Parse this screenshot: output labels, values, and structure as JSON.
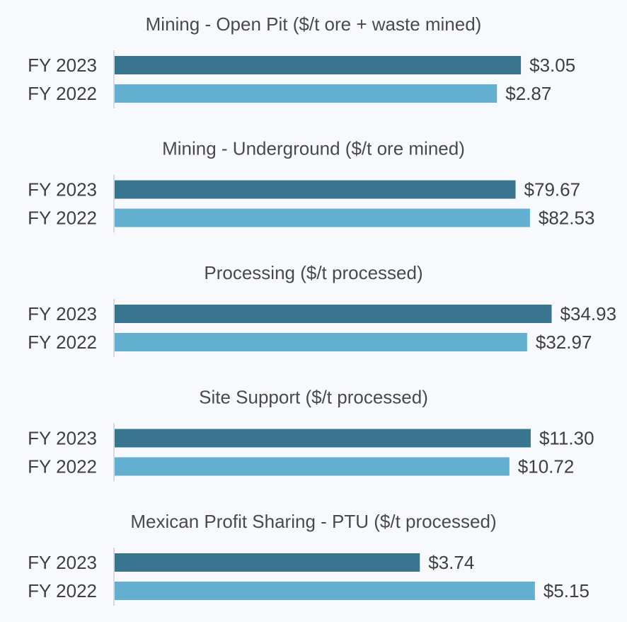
{
  "chart_data": [
    {
      "type": "bar",
      "orientation": "horizontal",
      "title": "Mining - Open Pit ($/t ore + waste mined)",
      "categories": [
        "FY 2023",
        "FY 2022"
      ],
      "values": [
        3.05,
        2.87
      ],
      "value_labels": [
        "$3.05",
        "$2.87"
      ],
      "colors": [
        "#3a758f",
        "#63afd0"
      ],
      "xlim": [
        0,
        3.4
      ]
    },
    {
      "type": "bar",
      "orientation": "horizontal",
      "title": "Mining - Underground ($/t ore mined)",
      "categories": [
        "FY 2023",
        "FY 2022"
      ],
      "values": [
        79.67,
        82.53
      ],
      "value_labels": [
        "$79.67",
        "$82.53"
      ],
      "colors": [
        "#3a758f",
        "#63afd0"
      ],
      "xlim": [
        0,
        90
      ]
    },
    {
      "type": "bar",
      "orientation": "horizontal",
      "title": "Processing ($/t processed)",
      "categories": [
        "FY 2023",
        "FY 2022"
      ],
      "values": [
        34.93,
        32.97
      ],
      "value_labels": [
        "$34.93",
        "$32.97"
      ],
      "colors": [
        "#3a758f",
        "#63afd0"
      ],
      "xlim": [
        0,
        36.2
      ]
    },
    {
      "type": "bar",
      "orientation": "horizontal",
      "title": "Site Support ($/t processed)",
      "categories": [
        "FY 2023",
        "FY 2022"
      ],
      "values": [
        11.3,
        10.72
      ],
      "value_labels": [
        "$11.30",
        "$10.72"
      ],
      "colors": [
        "#3a758f",
        "#63afd0"
      ],
      "xlim": [
        0,
        12.3
      ]
    },
    {
      "type": "bar",
      "orientation": "horizontal",
      "title": "Mexican Profit Sharing - PTU ($/t processed)",
      "categories": [
        "FY 2023",
        "FY 2022"
      ],
      "values": [
        3.74,
        5.15
      ],
      "value_labels": [
        "$3.74",
        "$5.15"
      ],
      "colors": [
        "#3a758f",
        "#63afd0"
      ],
      "xlim": [
        0,
        5.55
      ]
    }
  ]
}
